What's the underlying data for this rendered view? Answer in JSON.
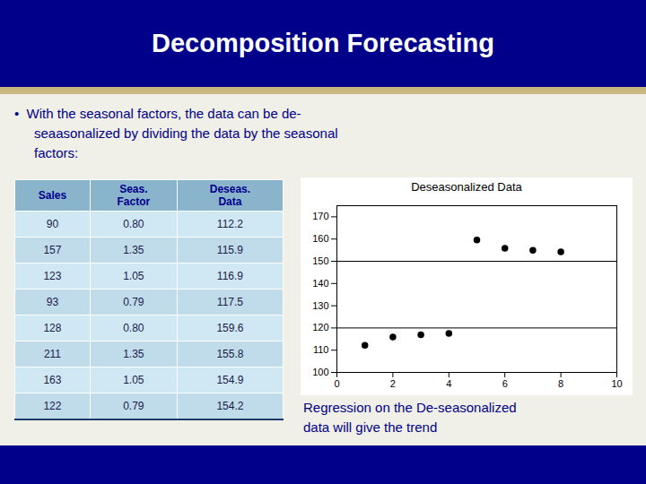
{
  "title": "Decomposition Forecasting",
  "annotations": [
    "•  With the seasonal factors, the data can be de-",
    "seaasonalized by dividing the data by the seasonal",
    "factors:"
  ],
  "chart_data": [
    {
      "type": "table",
      "series": [
        {
          "name": "Sales",
          "values": [
            90,
            157,
            123,
            93,
            128,
            211,
            163,
            122
          ]
        },
        {
          "name": "Seas.\nFactor",
          "values": [
            0.8,
            1.35,
            1.05,
            0.79,
            0.8,
            1.35,
            1.05,
            0.79
          ],
          "value_labels": [
            "0.80",
            "1.35",
            "1.05",
            "0.79",
            "0.80",
            "1.35",
            "1.05",
            "0.79"
          ]
        },
        {
          "name": "Deseas.\nData",
          "values": [
            112.2,
            115.9,
            116.9,
            117.5,
            159.6,
            155.8,
            154.9,
            154.2
          ]
        }
      ]
    },
    {
      "type": "scatter",
      "title": "Deseasonalized Data",
      "x": [
        1,
        2,
        3,
        4,
        5,
        6,
        7,
        8
      ],
      "values": [
        112.2,
        115.9,
        116.9,
        117.5,
        159.6,
        155.8,
        154.9,
        154.2
      ],
      "color": "black",
      "hlines": [
        120.0,
        150.0
      ],
      "xlim": [
        0,
        10
      ],
      "xticks": [
        0,
        2,
        4,
        6,
        8,
        10
      ],
      "ylim": [
        100.0,
        175.0
      ],
      "yticks": [
        100.0,
        110.0,
        120.0,
        130.0,
        140.0,
        150.0,
        160.0,
        170.0
      ],
      "annotations": [
        "Regression on the De-seasonalized",
        "data will give the trend"
      ]
    }
  ]
}
